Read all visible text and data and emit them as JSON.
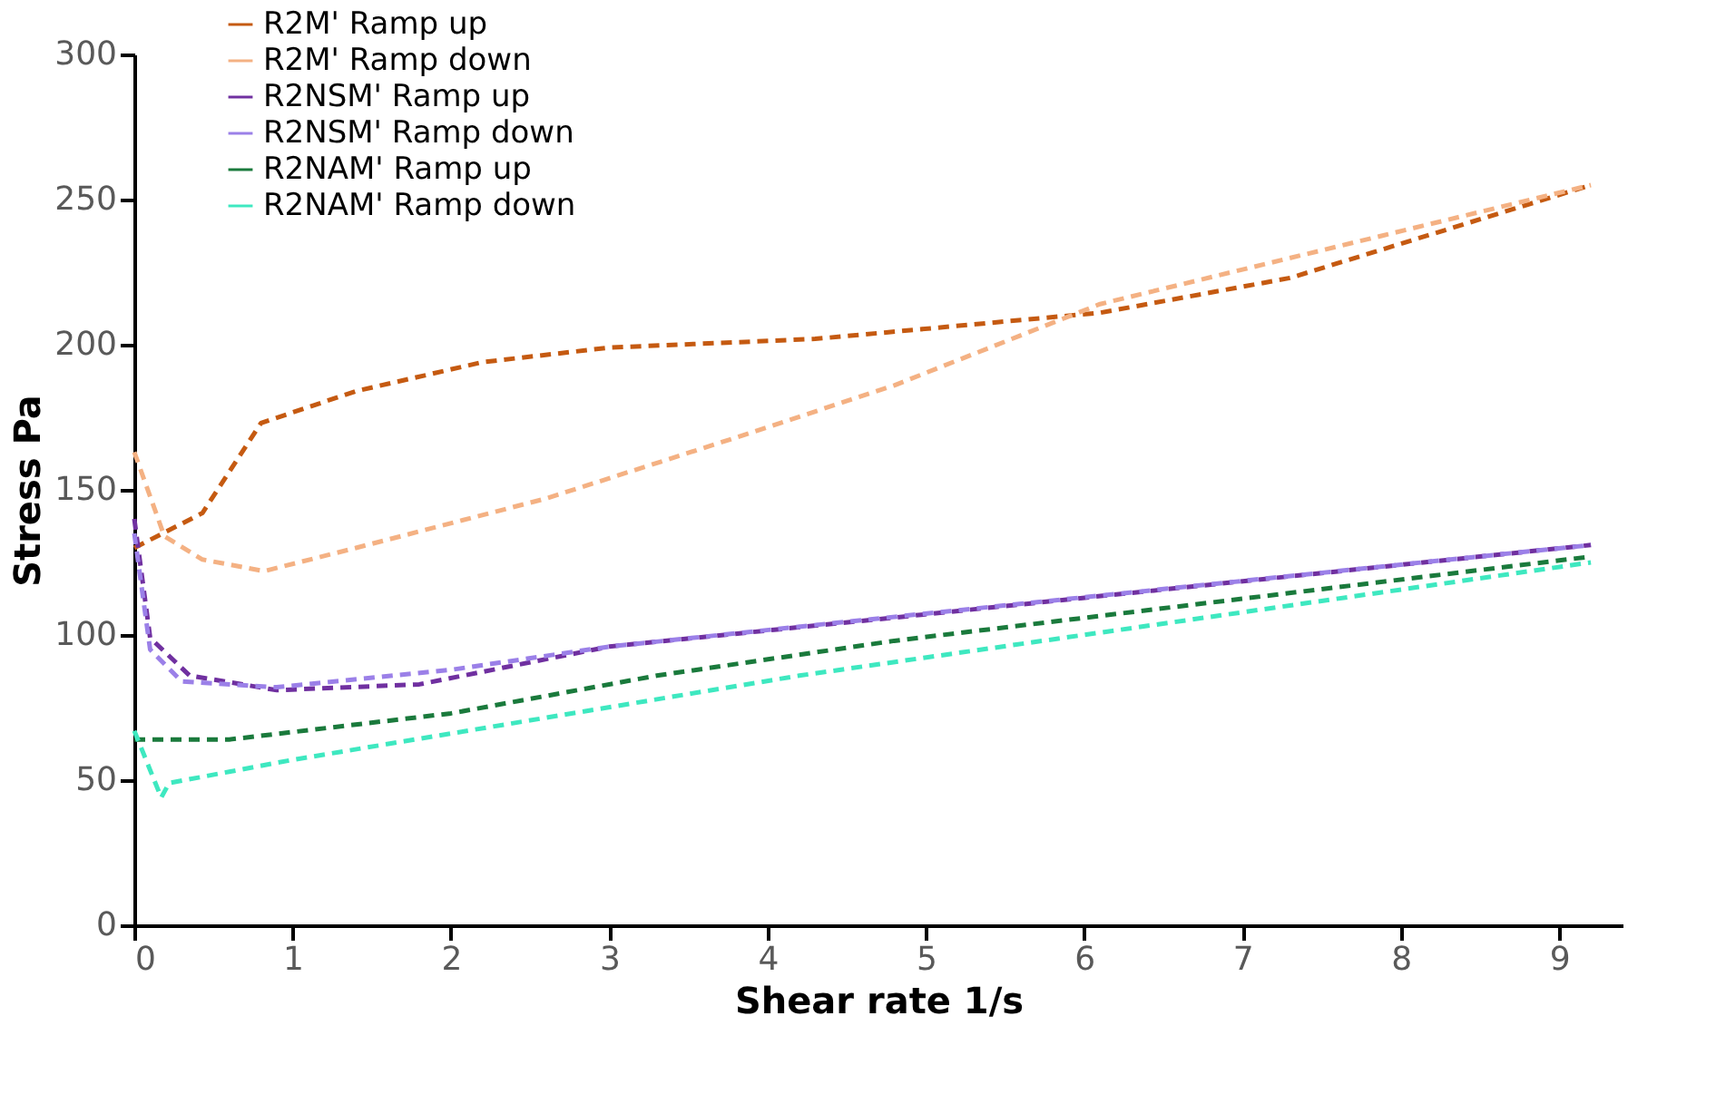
{
  "chart_data": {
    "type": "line",
    "xlabel": "Shear rate 1/s",
    "ylabel": "Stress Pa",
    "xlim": [
      0,
      9.4
    ],
    "xticks": [
      0,
      1,
      2,
      3,
      4,
      5,
      6,
      7,
      8,
      9
    ],
    "ylim": [
      0,
      300
    ],
    "yticks": [
      0,
      50,
      100,
      150,
      200,
      250,
      300
    ],
    "grid": false,
    "legend": "top left",
    "marker": "none",
    "line_style": "dashed",
    "series": [
      {
        "name": "R2M' Ramp up",
        "color": "#c55a11",
        "x": [
          0,
          0.43,
          0.8,
          1.4,
          2.2,
          3.0,
          4.3,
          6.1,
          7.3,
          9.2
        ],
        "values": [
          130,
          142,
          173,
          184,
          194,
          199,
          202,
          211,
          223,
          255
        ]
      },
      {
        "name": "R2M' Ramp down",
        "color": "#f4b183",
        "x": [
          0,
          0.19,
          0.43,
          0.82,
          1.4,
          2.6,
          3.8,
          4.8,
          6.1,
          9.2
        ],
        "values": [
          163,
          134,
          126,
          122,
          130,
          147,
          168,
          186,
          214,
          255
        ]
      },
      {
        "name": "R2NSM' Ramp up",
        "color": "#7030a0",
        "x": [
          0,
          0.1,
          0.35,
          0.9,
          1.8,
          3.0,
          4.8,
          9.2
        ],
        "values": [
          140,
          99,
          86,
          81,
          83,
          96,
          106,
          131
        ]
      },
      {
        "name": "R2NSM' Ramp down",
        "color": "#9b80e8",
        "x": [
          0,
          0.1,
          0.3,
          0.9,
          2.0,
          3.0,
          4.4,
          9.2
        ],
        "values": [
          135,
          95,
          84,
          82,
          88,
          96,
          104,
          131
        ]
      },
      {
        "name": "R2NAM' Ramp up",
        "color": "#1a7a3c",
        "x": [
          0,
          0.6,
          2.0,
          3.3,
          4.8,
          9.2
        ],
        "values": [
          64,
          64,
          73,
          86,
          98,
          127
        ]
      },
      {
        "name": "R2NAM' Ramp down",
        "color": "#3ee8c0",
        "x": [
          0,
          0.17,
          0.22,
          1.0,
          4.2,
          9.2
        ],
        "values": [
          67,
          44,
          49,
          57,
          86,
          125
        ]
      }
    ]
  }
}
